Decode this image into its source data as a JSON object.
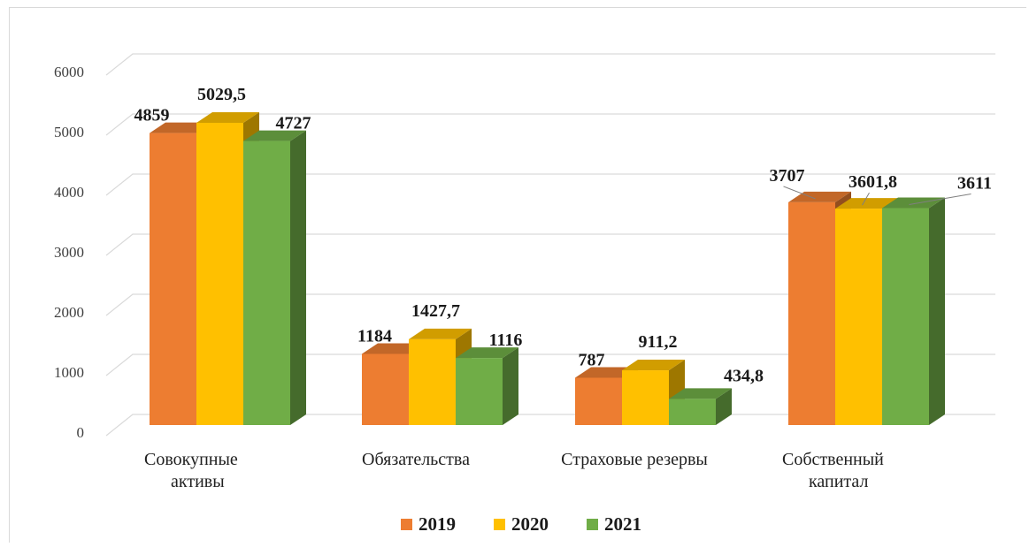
{
  "chart_data": {
    "type": "bar",
    "categories": [
      [
        "Совокупные",
        "активы"
      ],
      [
        "Обязательства"
      ],
      [
        "Страховые резервы"
      ],
      [
        "Собственный",
        "капитал"
      ]
    ],
    "series": [
      {
        "name": "2019",
        "color": "#ed7d31",
        "values": [
          4859,
          1184,
          787,
          3707
        ],
        "labels": [
          "4859",
          "1184",
          "787",
          "3707"
        ]
      },
      {
        "name": "2020",
        "color": "#ffc000",
        "values": [
          5029.5,
          1427.7,
          911.2,
          3601.8
        ],
        "labels": [
          "5029,5",
          "1427,7",
          "911,2",
          "3601,8"
        ]
      },
      {
        "name": "2021",
        "color": "#70ad47",
        "values": [
          4727,
          1116,
          434.8,
          3611
        ],
        "labels": [
          "4727",
          "1116",
          "434,8",
          "3611"
        ]
      }
    ],
    "ylim": [
      0,
      6000
    ],
    "yticks": [
      0,
      1000,
      2000,
      3000,
      4000,
      5000,
      6000
    ],
    "grid": true,
    "legend": "bottom",
    "style": "3d-clustered-column"
  }
}
